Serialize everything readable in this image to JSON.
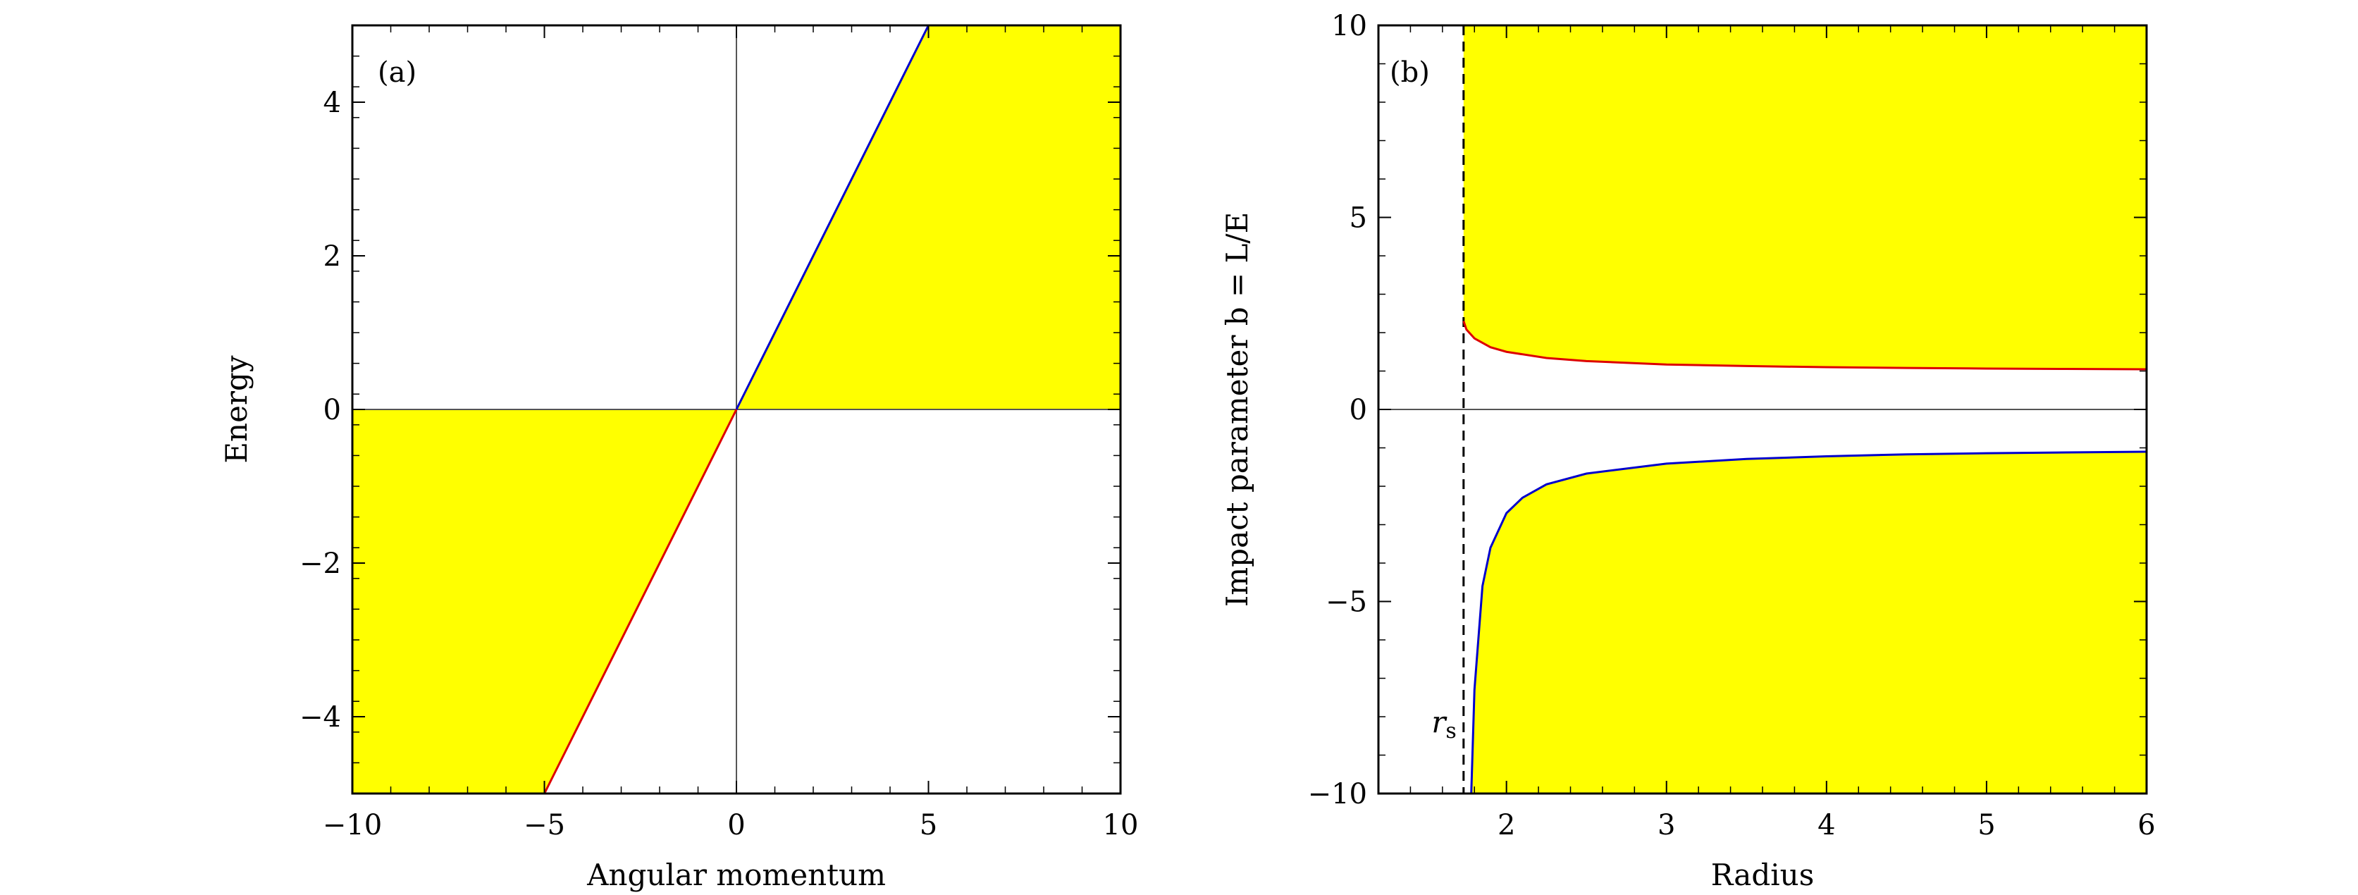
{
  "figure": {
    "colors": {
      "fill": "#ffff00",
      "upper_curve": "#dd0000",
      "lower_curve": "#0000cc",
      "axis_line": "#555555",
      "frame": "#000000"
    }
  },
  "chart_data": [
    {
      "type": "area",
      "panel_tag": "(a)",
      "xlabel": "Angular momentum",
      "ylabel": "Energy",
      "xlim": [
        -10,
        10
      ],
      "ylim": [
        -5,
        5
      ],
      "xticks": [
        -10,
        -5,
        0,
        5,
        10
      ],
      "xtick_labels": [
        "−10",
        "−5",
        "0",
        "5",
        "10"
      ],
      "yticks": [
        -4,
        -2,
        0,
        2,
        4
      ],
      "ytick_labels": [
        "−4",
        "−2",
        "0",
        "2",
        "4"
      ],
      "grid": false,
      "series": [
        {
          "color": "blue",
          "x": [
            0,
            5
          ],
          "y": [
            0,
            5
          ]
        },
        {
          "color": "red",
          "x": [
            -5,
            0
          ],
          "y": [
            -5,
            0
          ]
        }
      ],
      "shaded_regions": [
        {
          "description": "E >= 0 and E <= L",
          "polygon_x": [
            0,
            10,
            10,
            5
          ],
          "polygon_y": [
            0,
            0,
            5,
            5
          ]
        },
        {
          "description": "E <= 0 and E >= L",
          "polygon_x": [
            -10,
            0,
            -5,
            -10
          ],
          "polygon_y": [
            0,
            0,
            -5,
            -5
          ]
        }
      ]
    },
    {
      "type": "area",
      "panel_tag": "(b)",
      "xlabel": "Radius",
      "ylabel": "Impact parameter b = L/E",
      "xlim": [
        1.2,
        6
      ],
      "ylim": [
        -10,
        10
      ],
      "xticks": [
        2,
        3,
        4,
        5,
        6
      ],
      "xtick_labels": [
        "2",
        "3",
        "4",
        "5",
        "6"
      ],
      "yticks": [
        -10,
        -5,
        0,
        5,
        10
      ],
      "ytick_labels": [
        "−10",
        "−5",
        "0",
        "5",
        "10"
      ],
      "grid": false,
      "annotation": {
        "text_main": "r",
        "text_sub": "s",
        "x": 1.732
      },
      "series": [
        {
          "color": "red",
          "x": [
            1.732,
            1.75,
            1.8,
            1.9,
            2.0,
            2.25,
            2.5,
            3.0,
            3.5,
            4.0,
            4.5,
            5.0,
            5.5,
            6.0
          ],
          "y": [
            2.3,
            2.08,
            1.85,
            1.62,
            1.5,
            1.34,
            1.26,
            1.17,
            1.13,
            1.1,
            1.08,
            1.065,
            1.055,
            1.045
          ]
        },
        {
          "color": "blue",
          "x": [
            1.78,
            1.8,
            1.85,
            1.9,
            2.0,
            2.1,
            2.25,
            2.5,
            3.0,
            3.5,
            4.0,
            4.5,
            5.0,
            5.5,
            6.0
          ],
          "y": [
            -10.0,
            -7.3,
            -4.6,
            -3.6,
            -2.7,
            -2.3,
            -1.95,
            -1.67,
            -1.41,
            -1.29,
            -1.22,
            -1.17,
            -1.14,
            -1.12,
            -1.1
          ]
        }
      ],
      "shaded_regions": [
        {
          "description": "above red curve, right of r_s"
        },
        {
          "description": "below blue curve"
        }
      ]
    }
  ]
}
